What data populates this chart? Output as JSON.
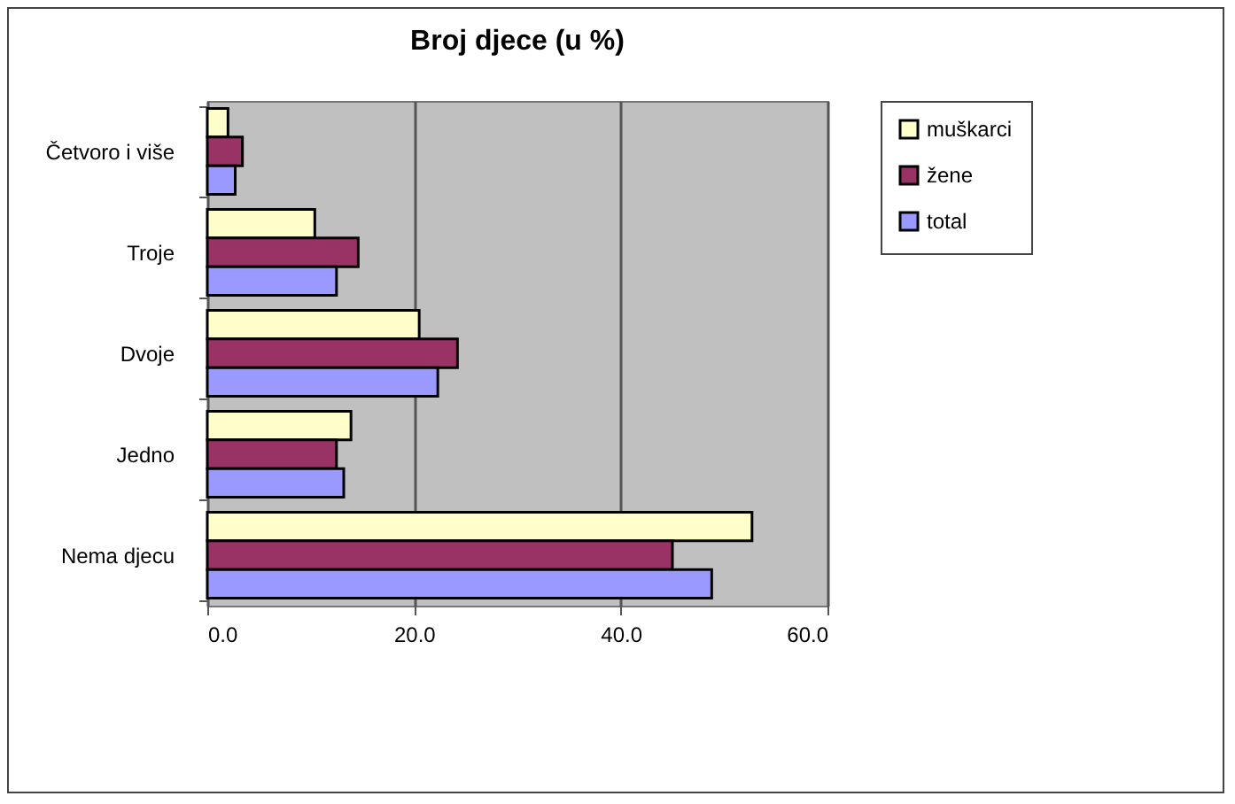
{
  "chart_data": {
    "type": "bar",
    "orientation": "horizontal",
    "title": "Broj djece (u %)",
    "categories": [
      "Četvoro i više",
      "Troje",
      "Dvoje",
      "Jedno",
      "Nema djecu"
    ],
    "series": [
      {
        "name": "muškarci",
        "color": "#ffffcc",
        "values": [
          2.0,
          10.4,
          20.5,
          13.9,
          52.7
        ]
      },
      {
        "name": "žene",
        "color": "#993366",
        "values": [
          3.4,
          14.6,
          24.2,
          12.5,
          45.0
        ]
      },
      {
        "name": "total",
        "color": "#9999ff",
        "values": [
          2.7,
          12.5,
          22.3,
          13.2,
          48.8
        ]
      }
    ],
    "xlim": [
      0,
      60
    ],
    "xticks": [
      {
        "value": 0,
        "label": "0.0"
      },
      {
        "value": 20,
        "label": "20.0"
      },
      {
        "value": 40,
        "label": "40.0"
      },
      {
        "value": 60,
        "label": "60.0"
      }
    ],
    "grid": "x",
    "legend": "right"
  }
}
